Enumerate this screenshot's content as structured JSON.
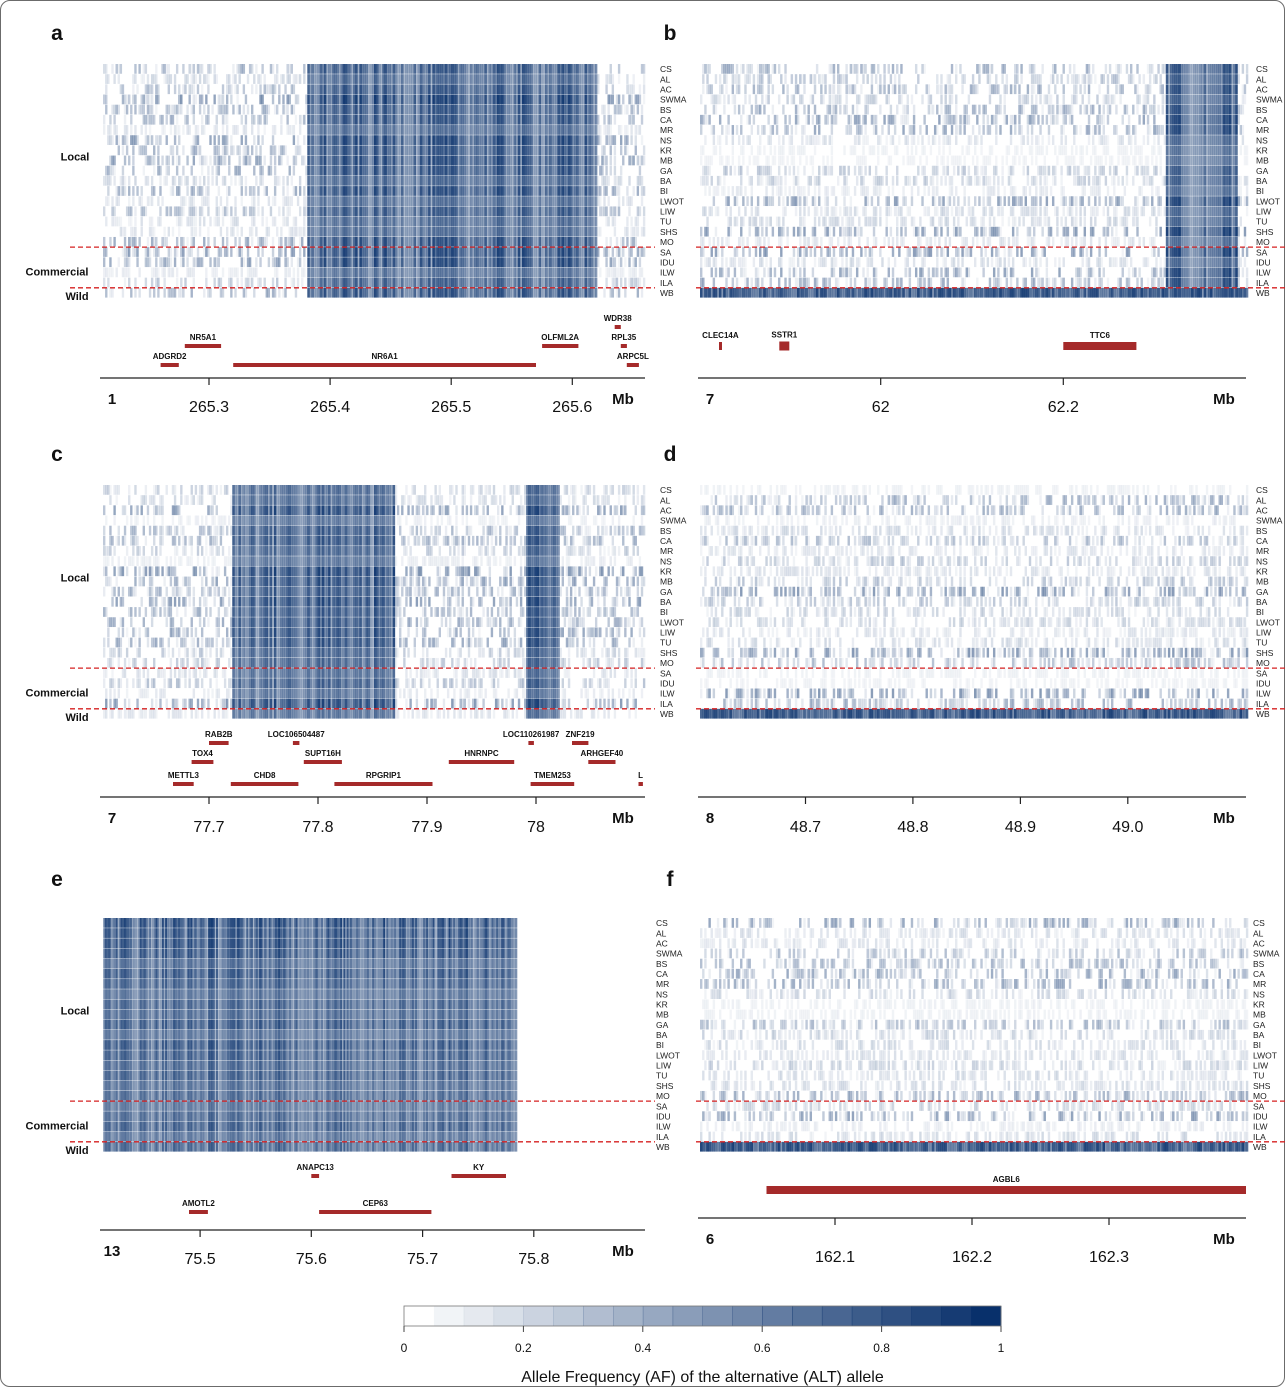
{
  "chart_data": [
    {
      "type": "heatmap",
      "panel": "a",
      "chromosome": "1",
      "unit": "Mb",
      "xlim": [
        265.21,
        265.66
      ],
      "ticks": [
        "265.3",
        "265.4",
        "265.5",
        "265.6"
      ],
      "tick_values": [
        265.3,
        265.4,
        265.5,
        265.6
      ],
      "rows": [
        "CS",
        "AL",
        "AC",
        "SWMA",
        "BS",
        "CA",
        "MR",
        "NS",
        "KR",
        "MB",
        "GA",
        "BA",
        "BI",
        "LWOT",
        "LIW",
        "TU",
        "SHS",
        "MO",
        "SA",
        "IDU",
        "ILW",
        "ILA",
        "WB"
      ],
      "groups": [
        "Local",
        "Commercial",
        "Wild"
      ],
      "genes": [
        {
          "name": "NR5A1",
          "start": 265.28,
          "end": 265.31,
          "lane": 1
        },
        {
          "name": "ADGRD2",
          "start": 265.26,
          "end": 265.275,
          "lane": 2
        },
        {
          "name": "NR6A1",
          "start": 265.32,
          "end": 265.57,
          "lane": 2
        },
        {
          "name": "WDR38",
          "start": 265.635,
          "end": 265.64,
          "lane": 0
        },
        {
          "name": "OLFML2A",
          "start": 265.575,
          "end": 265.605,
          "lane": 1
        },
        {
          "name": "RPL35",
          "start": 265.64,
          "end": 265.645,
          "lane": 1
        },
        {
          "name": "ARPC5L",
          "start": 265.645,
          "end": 265.655,
          "lane": 2
        }
      ],
      "hot_regions": [
        [
          265.38,
          265.62
        ]
      ]
    },
    {
      "type": "heatmap",
      "panel": "b",
      "chromosome": "7",
      "unit": "Mb",
      "xlim": [
        61.8,
        62.4
      ],
      "ticks": [
        "62",
        "62.2"
      ],
      "tick_values": [
        62.0,
        62.2
      ],
      "rows": [
        "CS",
        "AL",
        "AC",
        "SWMA",
        "BS",
        "CA",
        "MR",
        "NS",
        "KR",
        "MB",
        "GA",
        "BA",
        "BI",
        "LWOT",
        "LIW",
        "TU",
        "SHS",
        "MO",
        "SA",
        "IDU",
        "ILW",
        "ILA",
        "WB"
      ],
      "groups": [
        "Local",
        "Commercial",
        "Wild"
      ],
      "genes": [
        {
          "name": "CLEC14A",
          "start": 61.823,
          "end": 61.826,
          "lane": 1
        },
        {
          "name": "SSTR1",
          "start": 61.889,
          "end": 61.9,
          "lane": 1
        },
        {
          "name": "TTC6",
          "start": 62.2,
          "end": 62.28,
          "lane": 1
        }
      ],
      "hot_regions": [
        [
          62.31,
          62.39
        ]
      ]
    },
    {
      "type": "heatmap",
      "panel": "c",
      "chromosome": "7",
      "unit": "Mb",
      "xlim": [
        77.6,
        78.1
      ],
      "ticks": [
        "77.7",
        "77.8",
        "77.9",
        "78"
      ],
      "tick_values": [
        77.7,
        77.8,
        77.9,
        78.0
      ],
      "rows": [
        "CS",
        "AL",
        "AC",
        "SWMA",
        "BS",
        "CA",
        "MR",
        "NS",
        "KR",
        "MB",
        "GA",
        "BA",
        "BI",
        "LWOT",
        "LIW",
        "TU",
        "SHS",
        "MO",
        "SA",
        "IDU",
        "ILW",
        "ILA",
        "WB"
      ],
      "groups": [
        "Local",
        "Commercial",
        "Wild"
      ],
      "genes": [
        {
          "name": "RAB2B",
          "start": 77.7,
          "end": 77.718,
          "lane": 0
        },
        {
          "name": "LOC106504487",
          "start": 77.777,
          "end": 77.783,
          "lane": 0
        },
        {
          "name": "LOC110261987",
          "start": 77.993,
          "end": 77.998,
          "lane": 0
        },
        {
          "name": "ZNF219",
          "start": 78.033,
          "end": 78.048,
          "lane": 0
        },
        {
          "name": "TOX4",
          "start": 77.684,
          "end": 77.704,
          "lane": 1
        },
        {
          "name": "SUPT16H",
          "start": 77.787,
          "end": 77.822,
          "lane": 1
        },
        {
          "name": "HNRNPC",
          "start": 77.92,
          "end": 77.98,
          "lane": 1
        },
        {
          "name": "ARHGEF40",
          "start": 78.048,
          "end": 78.073,
          "lane": 1
        },
        {
          "name": "METTL3",
          "start": 77.667,
          "end": 77.686,
          "lane": 2
        },
        {
          "name": "CHD8",
          "start": 77.72,
          "end": 77.782,
          "lane": 2
        },
        {
          "name": "RPGRIP1",
          "start": 77.815,
          "end": 77.905,
          "lane": 2
        },
        {
          "name": "TMEM253",
          "start": 77.995,
          "end": 78.035,
          "lane": 2
        },
        {
          "name": "L",
          "start": 78.094,
          "end": 78.098,
          "lane": 2
        }
      ],
      "hot_regions": [
        [
          77.72,
          77.87
        ],
        [
          77.99,
          78.02
        ]
      ]
    },
    {
      "type": "heatmap",
      "panel": "d",
      "chromosome": "8",
      "unit": "Mb",
      "xlim": [
        48.6,
        49.11
      ],
      "ticks": [
        "48.7",
        "48.8",
        "48.9",
        "49.0"
      ],
      "tick_values": [
        48.7,
        48.8,
        48.9,
        49.0
      ],
      "rows": [
        "CS",
        "AL",
        "AC",
        "SWMA",
        "BS",
        "CA",
        "MR",
        "NS",
        "KR",
        "MB",
        "GA",
        "BA",
        "BI",
        "LWOT",
        "LIW",
        "TU",
        "SHS",
        "MO",
        "SA",
        "IDU",
        "ILW",
        "ILA",
        "WB"
      ],
      "groups": [
        "Local",
        "Commercial",
        "Wild"
      ],
      "genes": [],
      "hot_regions": []
    },
    {
      "type": "heatmap",
      "panel": "e",
      "chromosome": "13",
      "unit": "Mb",
      "xlim": [
        75.41,
        75.9
      ],
      "ticks": [
        "75.5",
        "75.6",
        "75.7",
        "75.8"
      ],
      "tick_values": [
        75.5,
        75.6,
        75.7,
        75.8
      ],
      "rows": [
        "CS",
        "AL",
        "AC",
        "SWMA",
        "BS",
        "CA",
        "MR",
        "NS",
        "KR",
        "MB",
        "GA",
        "BA",
        "BI",
        "LWOT",
        "LIW",
        "TU",
        "SHS",
        "MO",
        "SA",
        "IDU",
        "ILW",
        "ILA",
        "WB"
      ],
      "groups": [
        "Local",
        "Commercial",
        "Wild"
      ],
      "genes": [
        {
          "name": "ANAPC13",
          "start": 75.6,
          "end": 75.607,
          "lane": 0
        },
        {
          "name": "KY",
          "start": 75.726,
          "end": 75.775,
          "lane": 0
        },
        {
          "name": "AMOTL2",
          "start": 75.49,
          "end": 75.507,
          "lane": 1
        },
        {
          "name": "CEP63",
          "start": 75.607,
          "end": 75.708,
          "lane": 1
        }
      ],
      "hot_regions": [
        [
          75.41,
          75.79
        ]
      ]
    },
    {
      "type": "heatmap",
      "panel": "f",
      "chromosome": "6",
      "unit": "Mb",
      "xlim": [
        162.0,
        162.4
      ],
      "ticks": [
        "162.1",
        "162.2",
        "162.3"
      ],
      "tick_values": [
        162.1,
        162.2,
        162.3
      ],
      "rows": [
        "CS",
        "AL",
        "AC",
        "SWMA",
        "BS",
        "CA",
        "MR",
        "NS",
        "KR",
        "MB",
        "GA",
        "BA",
        "BI",
        "LWOT",
        "LIW",
        "TU",
        "SHS",
        "MO",
        "SA",
        "IDU",
        "ILW",
        "ILA",
        "WB"
      ],
      "groups": [
        "Local",
        "Commercial",
        "Wild"
      ],
      "genes": [
        {
          "name": "AGBL6",
          "start": 162.05,
          "end": 162.4,
          "lane": 1
        }
      ],
      "hot_regions": []
    }
  ],
  "colorbar": {
    "title": "Allele Frequency (AF) of the alternative (ALT) allele",
    "ticks": [
      "0",
      "0.2",
      "0.4",
      "0.6",
      "0.8",
      "1"
    ],
    "tick_values": [
      0,
      0.2,
      0.4,
      0.6,
      0.8,
      1
    ],
    "color_low": "#ffffff",
    "color_high": "#08306b"
  },
  "colors": {
    "gene": "#a52a2a",
    "separator": "#d62020",
    "heat": "#08306b"
  }
}
